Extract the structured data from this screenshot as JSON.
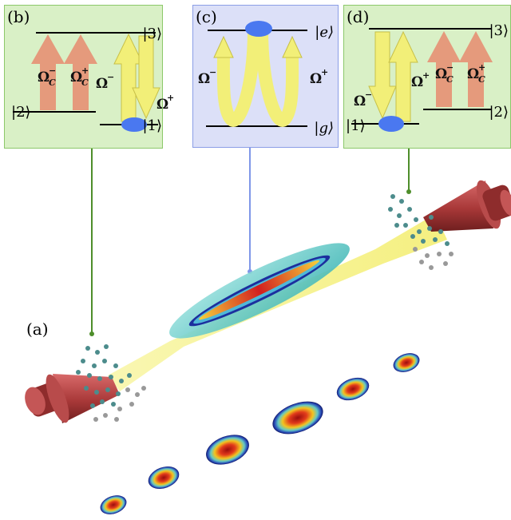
{
  "panels": {
    "a": {
      "label": "(a)"
    },
    "b": {
      "label": "(b)",
      "states": [
        "|3⟩",
        "|2⟩",
        "|1⟩"
      ],
      "fields": [
        "Ω",
        "Ω",
        "Ω",
        "Ω"
      ],
      "field_sup": [
        "−",
        "+",
        "−",
        "+"
      ],
      "field_sub": [
        "C",
        "C",
        "",
        ""
      ]
    },
    "c": {
      "label": "(c)",
      "states": [
        "|e⟩",
        "|g⟩"
      ],
      "fields": [
        "Ω",
        "Ω"
      ],
      "field_sup": [
        "−",
        "+"
      ]
    },
    "d": {
      "label": "(d)",
      "states": [
        "|3⟩",
        "|2⟩",
        "|1⟩"
      ],
      "fields": [
        "Ω",
        "Ω",
        "Ω",
        "Ω"
      ],
      "field_sup": [
        "−",
        "+",
        "−",
        "+"
      ],
      "field_sub": [
        "",
        "",
        "C",
        "C"
      ]
    }
  },
  "colors": {
    "panel_green": "#d9f0c6",
    "panel_blue": "#dce0f8",
    "coupling_arrow": "#e59a7c",
    "probe_arrow": "#f2ef78",
    "atom": "#4a78f0",
    "laser_cone": "#a63a3a",
    "beam": "#f5f27a",
    "connector_green": "#4e8e2b",
    "connector_blue": "#7f97e8"
  },
  "icons": [
    "laser-cone-icon",
    "atom-cloud-icon",
    "bec-cloud-icon",
    "cloud-profile-icon"
  ]
}
